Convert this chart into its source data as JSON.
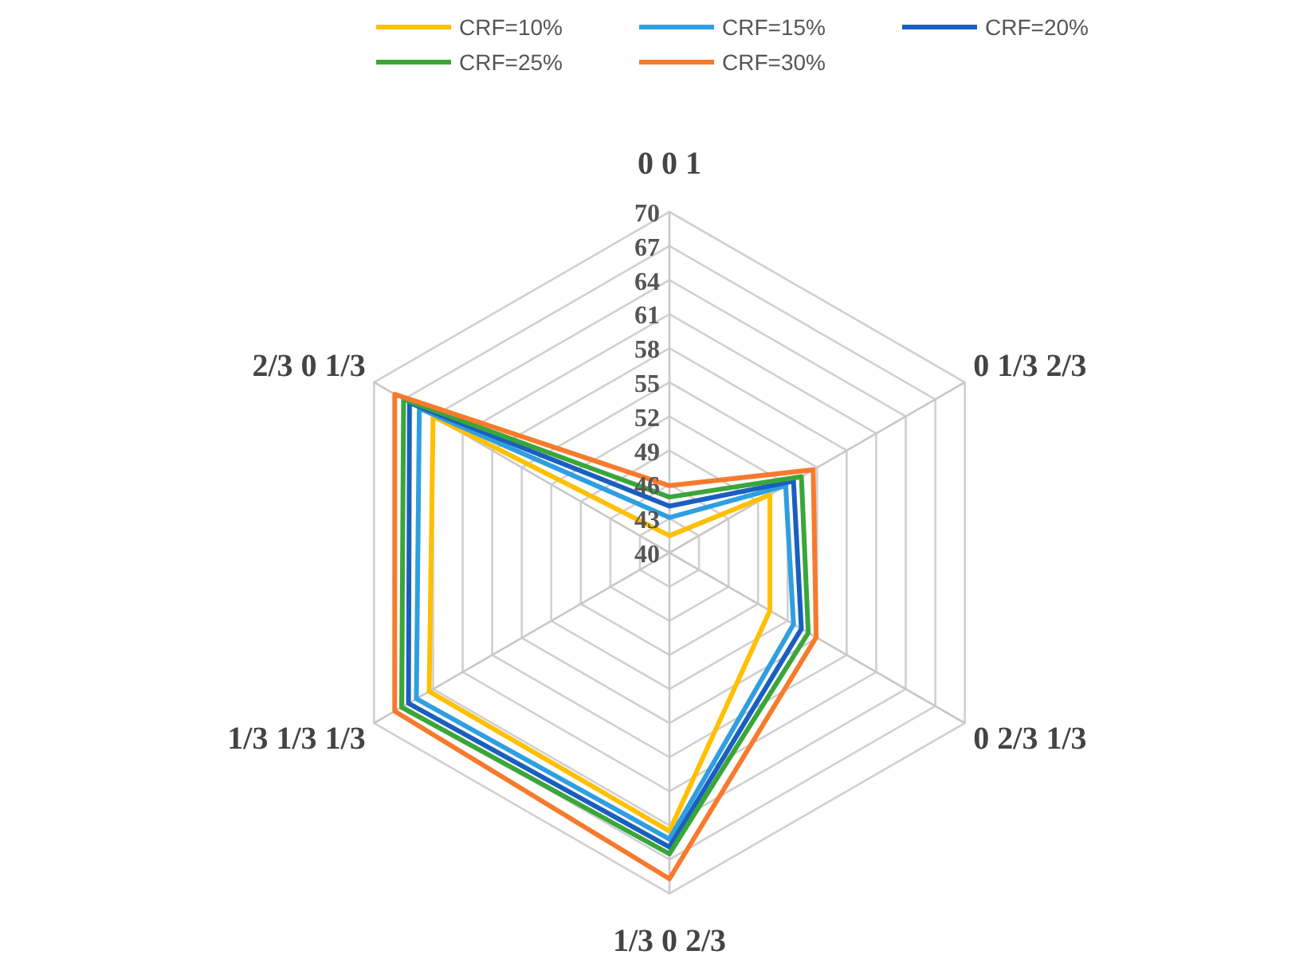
{
  "chart_data": {
    "type": "radar",
    "categories": [
      "0 0 1",
      "0 1/3 2/3",
      "0 2/3 1/3",
      "1/3 0 2/3",
      "1/3 1/3 1/3",
      "2/3 0 1/3"
    ],
    "ylim": [
      40,
      70
    ],
    "yticks": [
      40,
      43,
      46,
      49,
      52,
      55,
      58,
      61,
      64,
      67,
      70
    ],
    "grid": true,
    "legend": "top",
    "series": [
      {
        "name": "CRF=10%",
        "color": "#ffc000",
        "values": [
          41.5,
          50.2,
          50.2,
          64.5,
          64.4,
          64.0
        ]
      },
      {
        "name": "CRF=15%",
        "color": "#2e9fe0",
        "values": [
          43.1,
          51.8,
          52.6,
          65.2,
          65.7,
          65.4
        ]
      },
      {
        "name": "CRF=20%",
        "color": "#1a5fbf",
        "values": [
          44.1,
          52.6,
          53.4,
          65.9,
          66.5,
          66.4
        ]
      },
      {
        "name": "CRF=25%",
        "color": "#3aa63a",
        "values": [
          44.9,
          53.4,
          54.1,
          66.5,
          67.2,
          67.0
        ]
      },
      {
        "name": "CRF=30%",
        "color": "#f87a2c",
        "values": [
          45.9,
          54.6,
          54.9,
          68.7,
          67.9,
          67.9
        ]
      }
    ]
  }
}
